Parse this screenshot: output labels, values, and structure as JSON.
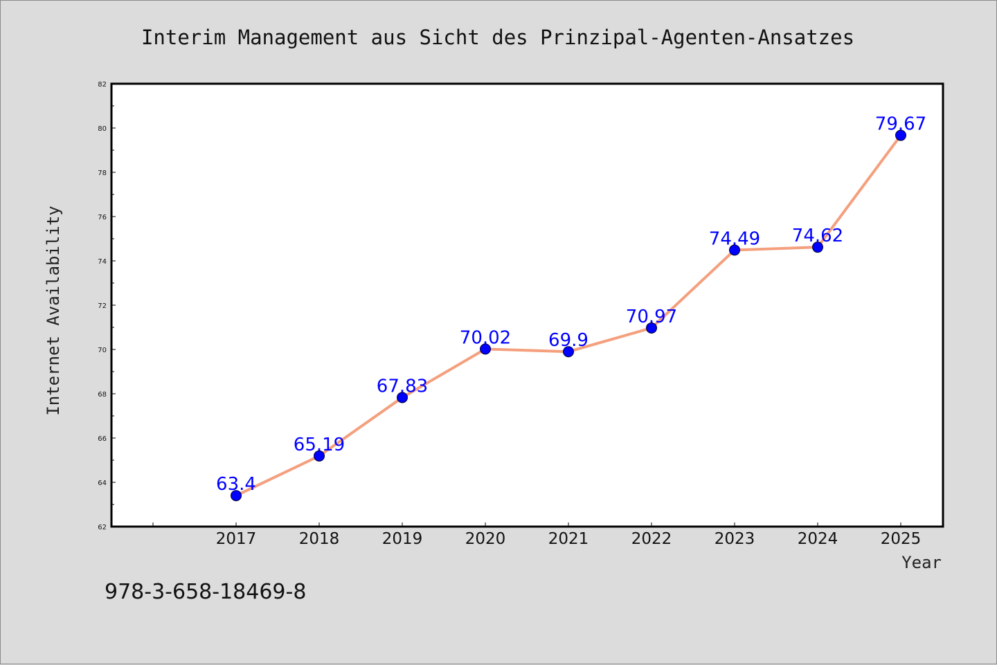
{
  "chart_data": {
    "type": "line",
    "title": "Interim Management aus Sicht des Prinzipal-Agenten-Ansatzes",
    "xlabel": "Year",
    "ylabel": "Internet Availability",
    "categories": [
      "2017",
      "2018",
      "2019",
      "2020",
      "2021",
      "2022",
      "2023",
      "2024",
      "2025"
    ],
    "series": [
      {
        "values": [
          63.4,
          65.19,
          67.83,
          70.02,
          69.9,
          70.97,
          74.49,
          74.62,
          79.67
        ],
        "data_labels": [
          "63.4",
          "65.19",
          "67.83",
          "70.02",
          "69.9",
          "70.97",
          "74.49",
          "74.62",
          "79.67"
        ]
      }
    ],
    "ylim": [
      62,
      82
    ],
    "yticks": [
      "62",
      "64",
      "66",
      "68",
      "70",
      "72",
      "74",
      "76",
      "78",
      "80",
      "82"
    ],
    "grid": false,
    "legend": "none",
    "colors": {
      "line": "#f4a07e",
      "marker": "#0000ff",
      "data_label": "#0000ff",
      "plot_background": "#ffffff",
      "figure_background": "#dcdcdc"
    }
  },
  "footer": {
    "isbn": "978-3-658-18469-8"
  }
}
